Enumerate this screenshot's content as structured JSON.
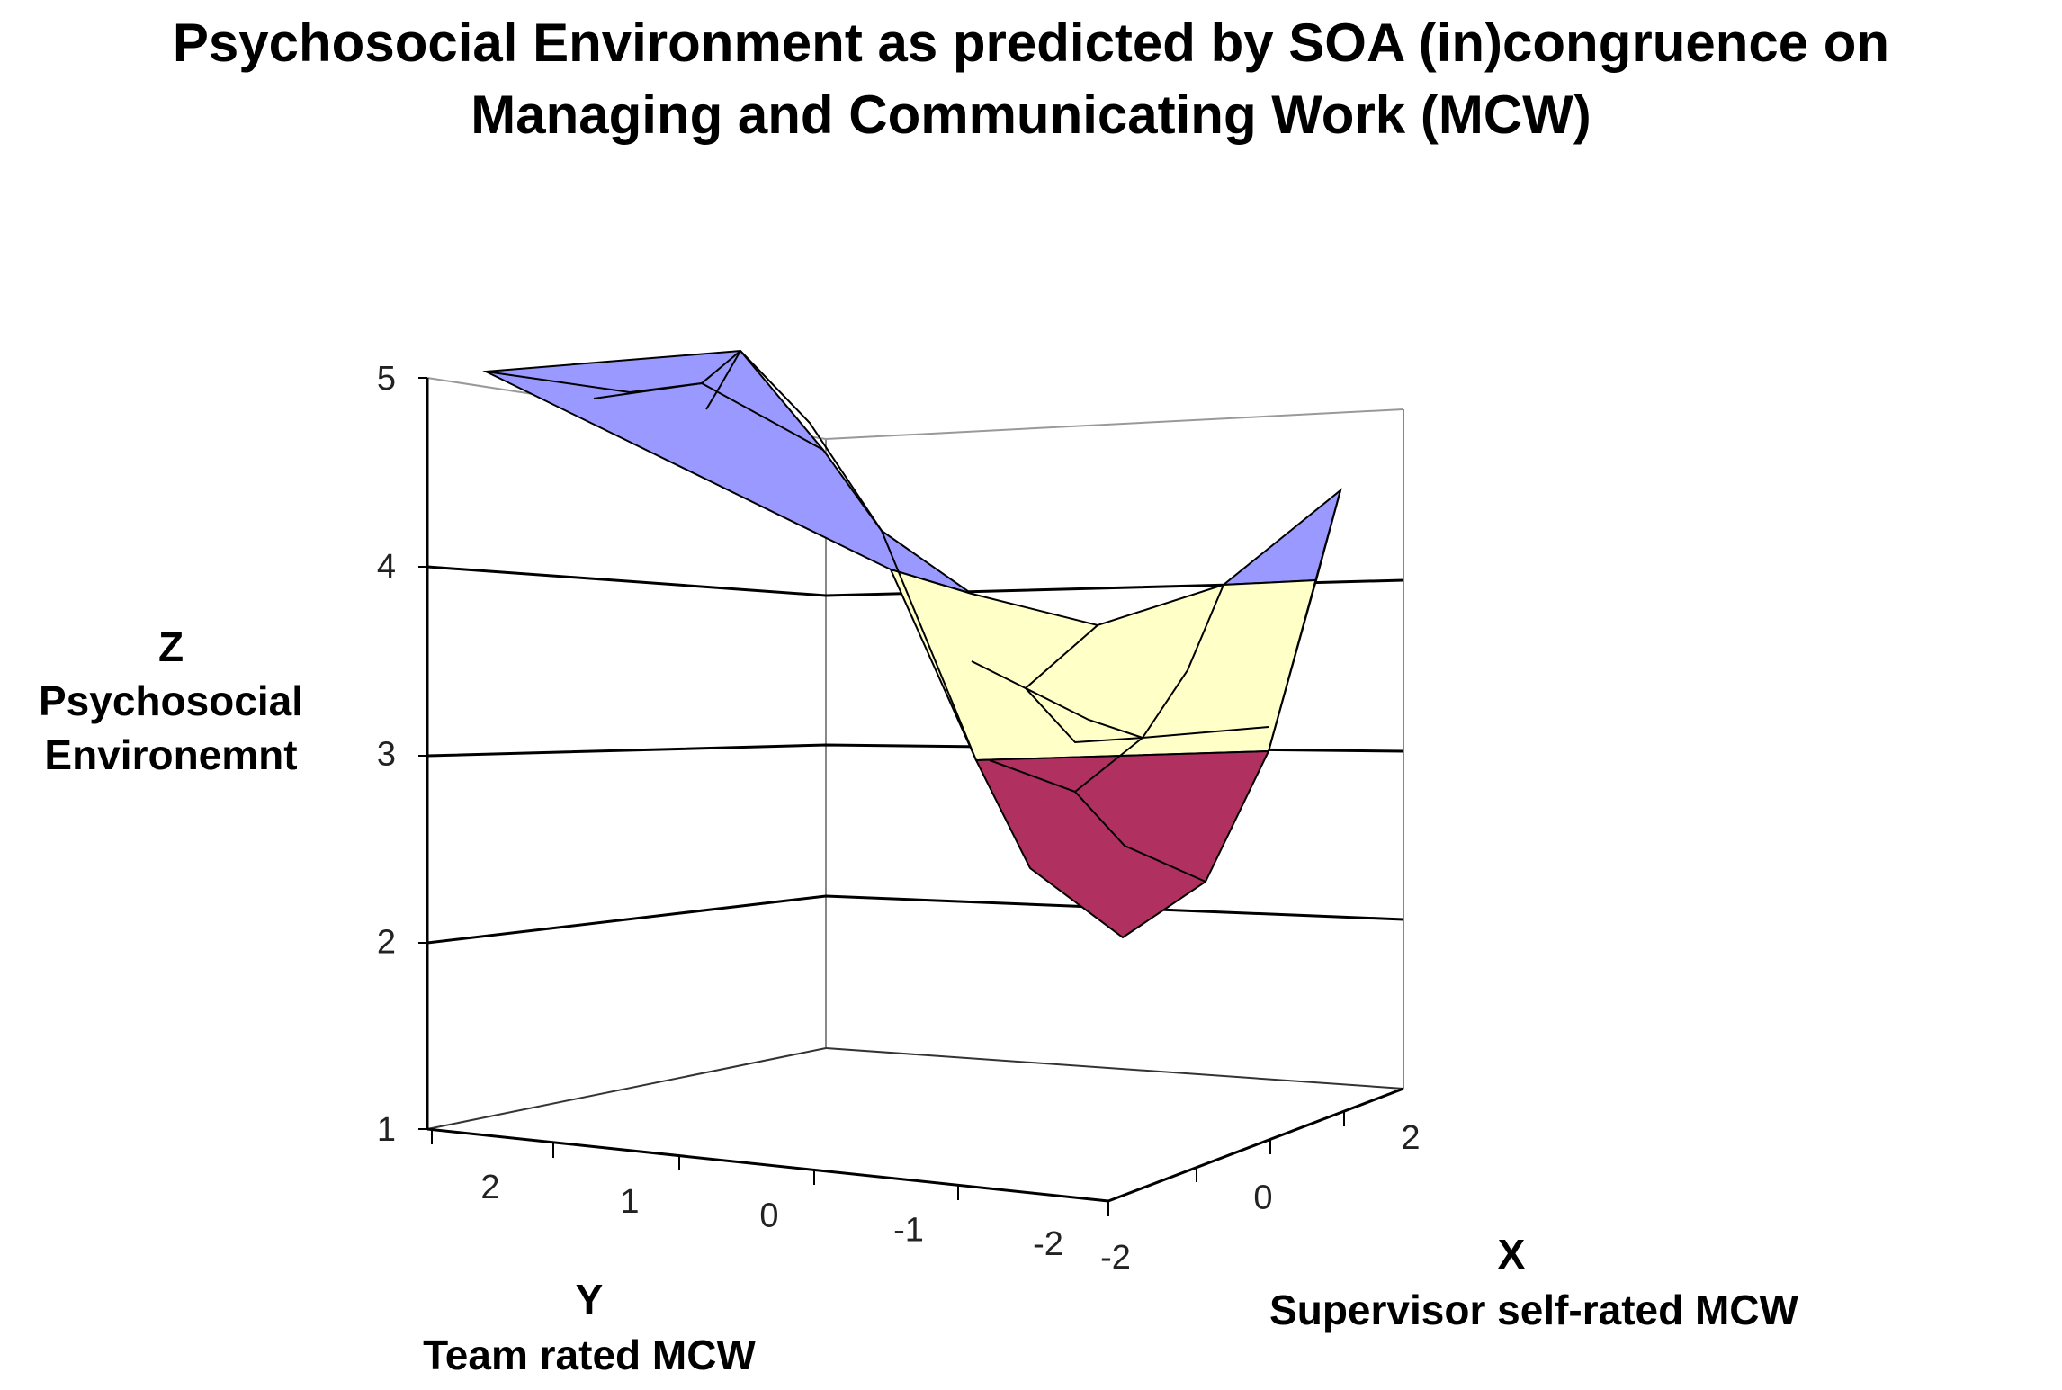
{
  "chart_data": {
    "type": "surface",
    "title": "Psychosocial Environment as predicted by SOA (in)congruence on\nManaging and Communicating Work (MCW)",
    "zlabel_letter": "Z",
    "zlabel": "Psychosocial\nEnvironemnt",
    "ylabel_letter": "Y",
    "ylabel": "Team rated MCW",
    "xlabel_letter": "X",
    "xlabel": "Supervisor self-rated MCW",
    "z_ticks": [
      "5",
      "4",
      "3",
      "2",
      "1"
    ],
    "y_ticks": [
      "2",
      "1",
      "0",
      "-1",
      "-2"
    ],
    "x_ticks": [
      "-2",
      "0",
      "2"
    ],
    "zlim": [
      1,
      5
    ],
    "x": [
      -2,
      -1,
      0,
      1,
      2
    ],
    "y": [
      2,
      1,
      0,
      -1,
      -2
    ],
    "z_grid": [
      [
        3.4,
        4.1,
        4.7,
        5.0,
        5.2
      ],
      [
        3.0,
        3.6,
        4.1,
        4.6,
        4.9
      ],
      [
        2.6,
        3.1,
        3.5,
        4.0,
        4.4
      ],
      [
        2.4,
        2.8,
        3.2,
        3.7,
        4.0
      ],
      [
        2.0,
        2.4,
        2.8,
        3.4,
        3.9
      ]
    ],
    "color_bands": [
      {
        "range": "2-3",
        "color": "#b03060"
      },
      {
        "range": "3-4",
        "color": "#ffffc8"
      },
      {
        "range": "4-5",
        "color": "#9999ff"
      }
    ],
    "grid_lines": true
  }
}
